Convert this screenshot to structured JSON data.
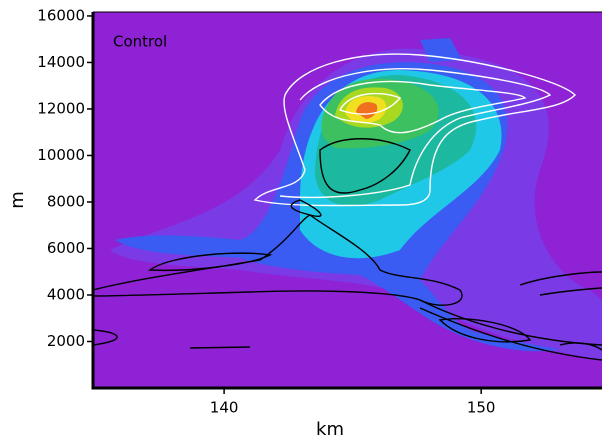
{
  "chart_data": {
    "type": "contour",
    "annotation": "Control",
    "xlabel": "km",
    "ylabel": "m",
    "xlim": [
      134.9,
      154.7
    ],
    "xticks": [
      140,
      150
    ],
    "ylim": [
      0,
      16170
    ],
    "yticks": [
      2000,
      4000,
      6000,
      8000,
      10000,
      12000,
      14000,
      16000
    ],
    "background_color": "#8e22d4"
  }
}
